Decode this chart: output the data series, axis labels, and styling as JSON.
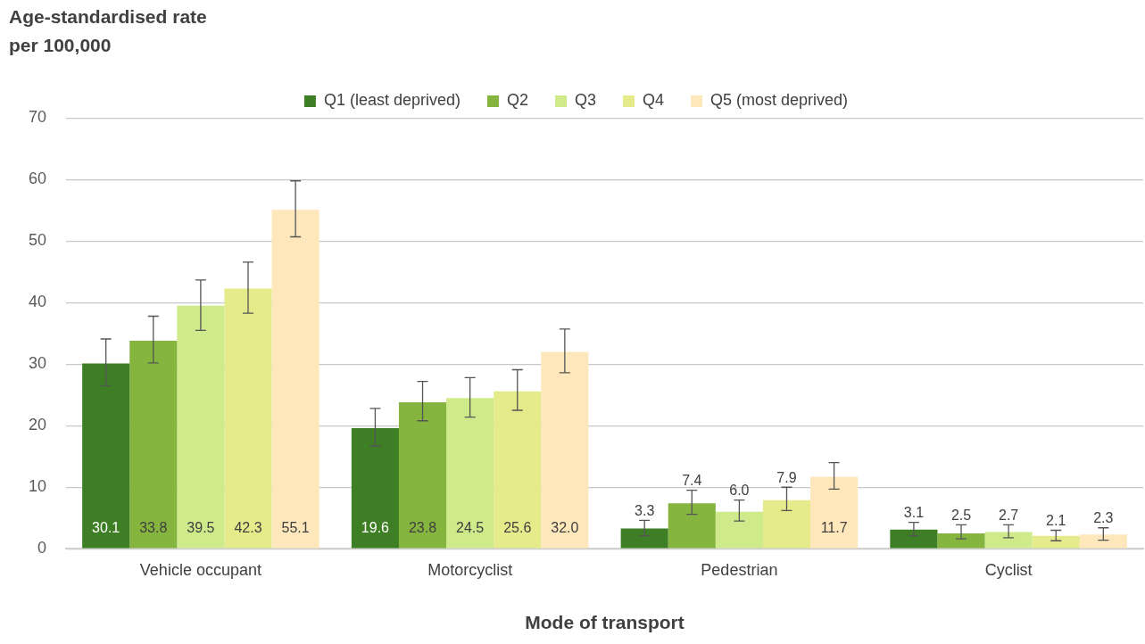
{
  "chart_data": {
    "type": "bar",
    "ylabel": "Age-standardised rate\nper 100,000",
    "xlabel": "Mode of transport",
    "categories": [
      "Vehicle occupant",
      "Motorcyclist",
      "Pedestrian",
      "Cyclist"
    ],
    "series": [
      {
        "name": "Q1 (least deprived)",
        "color": "#3e7f25",
        "values": [
          30.1,
          19.6,
          3.3,
          3.1
        ],
        "value_labels": [
          "30.1",
          "19.6",
          "3.3",
          "3.1"
        ],
        "errors": [
          [
            26.5,
            34.1
          ],
          [
            16.7,
            22.8
          ],
          [
            2.1,
            4.6
          ],
          [
            2.1,
            4.3
          ]
        ]
      },
      {
        "name": "Q2",
        "color": "#85b43f",
        "values": [
          33.8,
          23.8,
          7.4,
          2.5
        ],
        "value_labels": [
          "33.8",
          "23.8",
          "7.4",
          "2.5"
        ],
        "errors": [
          [
            30.2,
            37.8
          ],
          [
            20.8,
            27.2
          ],
          [
            5.6,
            9.5
          ],
          [
            1.6,
            3.9
          ]
        ]
      },
      {
        "name": "Q3",
        "color": "#cfea8a",
        "values": [
          39.5,
          24.5,
          6.0,
          2.7
        ],
        "value_labels": [
          "39.5",
          "24.5",
          "6.0",
          "2.7"
        ],
        "errors": [
          [
            35.5,
            43.7
          ],
          [
            21.4,
            27.8
          ],
          [
            4.5,
            7.9
          ],
          [
            1.8,
            3.9
          ]
        ]
      },
      {
        "name": "Q4",
        "color": "#e5ea8a",
        "values": [
          42.3,
          25.6,
          7.9,
          2.1
        ],
        "value_labels": [
          "42.3",
          "25.6",
          "7.9",
          "2.1"
        ],
        "errors": [
          [
            38.3,
            46.6
          ],
          [
            22.5,
            29.1
          ],
          [
            6.2,
            10.0
          ],
          [
            1.3,
            3.0
          ]
        ]
      },
      {
        "name": "Q5 (most deprived)",
        "color": "#fde7bb",
        "values": [
          55.1,
          32.0,
          11.7,
          2.3
        ],
        "value_labels": [
          "55.1",
          "32.0",
          "11.7",
          "2.3"
        ],
        "errors": [
          [
            50.7,
            59.8
          ],
          [
            28.6,
            35.7
          ],
          [
            9.7,
            14.0
          ],
          [
            1.4,
            3.4
          ]
        ]
      }
    ],
    "ylim": [
      0,
      70
    ],
    "yticks": [
      0,
      10,
      20,
      30,
      40,
      50,
      60,
      70
    ],
    "grid": "y",
    "legend": "top"
  }
}
